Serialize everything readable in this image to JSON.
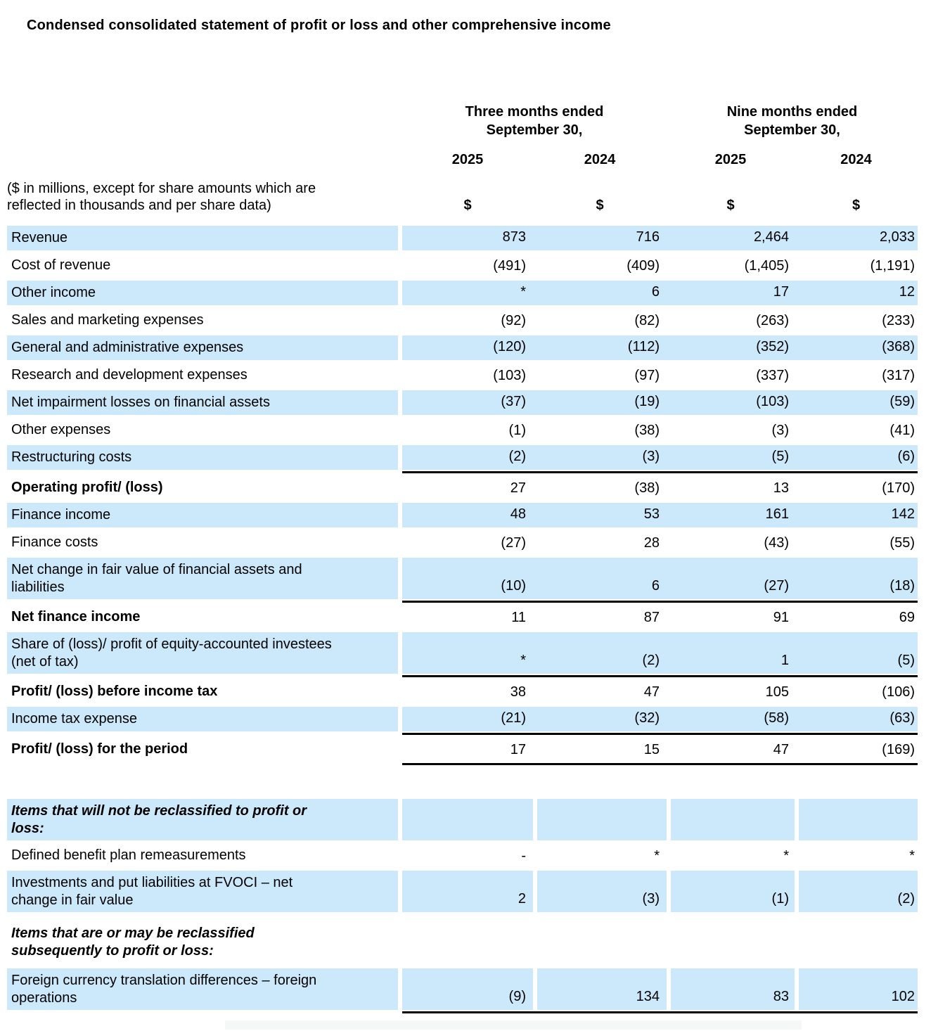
{
  "title": "Condensed consolidated statement of profit or loss and other comprehensive income",
  "colors": {
    "row_highlight": "#cbe9fa",
    "rule": "#000000",
    "text": "#000000"
  },
  "header": {
    "group1": "Three months ended\nSeptember 30,",
    "group2": "Nine months ended\nSeptember 30,",
    "years": [
      "2025",
      "2024",
      "2025",
      "2024"
    ],
    "note": "($ in millions, except for share amounts which are\nreflected in thousands and per share data)",
    "currency": [
      "$",
      "$",
      "$",
      "$"
    ]
  },
  "table": {
    "rows_main": [
      {
        "label": "Revenue",
        "values": [
          "873",
          "716",
          "2,464",
          "2,033"
        ],
        "shaded": true
      },
      {
        "label": "Cost of revenue",
        "values": [
          "(491)",
          "(409)",
          "(1,405)",
          "(1,191)"
        ]
      },
      {
        "label": "Other income",
        "values": [
          "*",
          "6",
          "17",
          "12"
        ],
        "shaded": true
      },
      {
        "label": "Sales and marketing expenses",
        "values": [
          "(92)",
          "(82)",
          "(263)",
          "(233)"
        ]
      },
      {
        "label": "General and administrative expenses",
        "values": [
          "(120)",
          "(112)",
          "(352)",
          "(368)"
        ],
        "shaded": true
      },
      {
        "label": "Research and development expenses",
        "values": [
          "(103)",
          "(97)",
          "(337)",
          "(317)"
        ]
      },
      {
        "label": "Net impairment losses on financial assets",
        "values": [
          "(37)",
          "(19)",
          "(103)",
          "(59)"
        ],
        "shaded": true
      },
      {
        "label": "Other expenses",
        "values": [
          "(1)",
          "(38)",
          "(3)",
          "(41)"
        ]
      },
      {
        "label": "Restructuring costs",
        "values": [
          "(2)",
          "(3)",
          "(5)",
          "(6)"
        ],
        "shaded": true,
        "rule_below": true
      },
      {
        "label": "Operating profit/ (loss)",
        "values": [
          "27",
          "(38)",
          "13",
          "(170)"
        ],
        "bold": true
      },
      {
        "label": "Finance income",
        "values": [
          "48",
          "53",
          "161",
          "142"
        ],
        "shaded": true
      },
      {
        "label": "Finance costs",
        "values": [
          "(27)",
          "28",
          "(43)",
          "(55)"
        ]
      },
      {
        "label": "Net change in fair value of financial assets and\nliabilities",
        "values": [
          "(10)",
          "6",
          "(27)",
          "(18)"
        ],
        "shaded": true,
        "tall": true,
        "rule_below": true
      },
      {
        "label": "Net finance income",
        "values": [
          "11",
          "87",
          "91",
          "69"
        ],
        "bold": true
      },
      {
        "label": "Share of (loss)/ profit of equity-accounted investees\n(net of tax)",
        "values": [
          "*",
          "(2)",
          "1",
          "(5)"
        ],
        "shaded": true,
        "tall": true,
        "rule_below": true
      },
      {
        "label": "Profit/ (loss) before income tax",
        "values": [
          "38",
          "47",
          "105",
          "(106)"
        ],
        "bold": true
      },
      {
        "label": "Income tax expense",
        "values": [
          "(21)",
          "(32)",
          "(58)",
          "(63)"
        ],
        "shaded": true,
        "rule_below": true
      },
      {
        "label": "Profit/ (loss) for the period",
        "values": [
          "17",
          "15",
          "47",
          "(169)"
        ],
        "bold": true,
        "rule_below": true
      }
    ],
    "rows_oci": [
      {
        "label": "Items that will not be reclassified to profit or\nloss:",
        "values": [
          "",
          "",
          "",
          ""
        ],
        "bold": true,
        "italic": true,
        "shaded": true,
        "tall": true,
        "split": true
      },
      {
        "label": "Defined benefit plan remeasurements",
        "values": [
          "-",
          "*",
          "*",
          "*"
        ],
        "split": true
      },
      {
        "label": "Investments and put liabilities at FVOCI – net\nchange in fair value",
        "values": [
          "2",
          "(3)",
          "(1)",
          "(2)"
        ],
        "shaded": true,
        "tall": true,
        "split": true
      },
      {
        "label": "Items that are or may be reclassified\nsubsequently to profit or loss:",
        "bold": true,
        "italic": true,
        "xtall": true,
        "no_cells": true
      },
      {
        "label": "Foreign currency translation differences – foreign\noperations",
        "values": [
          "(9)",
          "134",
          "83",
          "102"
        ],
        "shaded": true,
        "tall": true,
        "split": true,
        "rule_below": true
      }
    ]
  }
}
